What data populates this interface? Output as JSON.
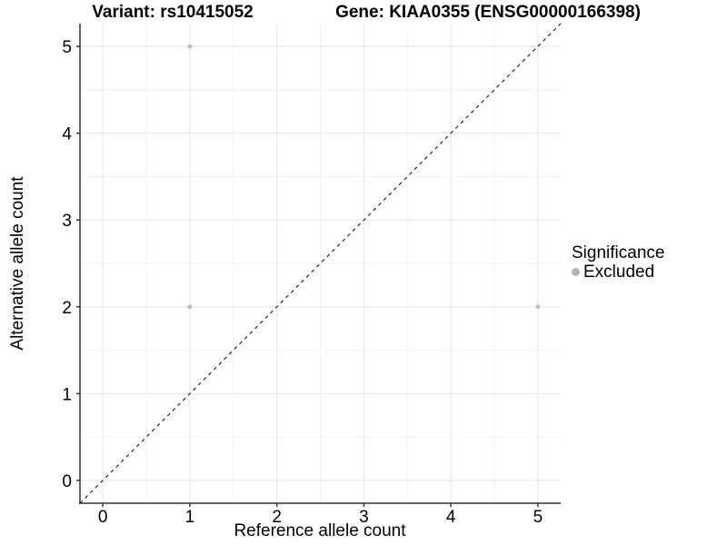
{
  "figure": {
    "title_left": "Variant: rs10415052",
    "title_right": "Gene: KIAA0355 (ENSG00000166398)"
  },
  "chart_data": {
    "type": "scatter",
    "title": "Variant: rs10415052    Gene: KIAA0355 (ENSG00000166398)",
    "xlabel": "Reference allele count",
    "ylabel": "Alternative allele count",
    "xlim": [
      -0.2625,
      5.2625
    ],
    "ylim": [
      -0.2625,
      5.2625
    ],
    "x_ticks": [
      0,
      1,
      2,
      3,
      4,
      5
    ],
    "y_ticks": [
      0,
      1,
      2,
      3,
      4,
      5
    ],
    "x_tick_labels": [
      "0",
      "1",
      "2",
      "3",
      "4",
      "5"
    ],
    "y_tick_labels": [
      "0",
      "1",
      "2",
      "3",
      "4",
      "5"
    ],
    "minor_ticks": [
      0.5,
      1.5,
      2.5,
      3.5,
      4.5
    ],
    "grid": "major+minor",
    "series": [
      {
        "name": "Excluded",
        "points": [
          [
            1,
            5
          ],
          [
            1,
            2
          ],
          [
            5,
            2
          ]
        ],
        "color": "#bebebe"
      }
    ],
    "reference_line": {
      "type": "identity",
      "from": [
        -0.2625,
        -0.2625
      ],
      "to": [
        5.2625,
        5.2625
      ],
      "style": "dashed",
      "color": "#000000"
    },
    "legend": {
      "title": "Significance",
      "position": "right",
      "entries": [
        {
          "label": "Excluded",
          "color": "#b5b5b5"
        }
      ]
    }
  },
  "colors": {
    "background": "#ffffff",
    "grid_major": "#e5e5e5",
    "grid_minor": "#f2f2f2",
    "axis_line": "#333333",
    "tick_mark": "#333333",
    "text": "#000000",
    "point": "#bebebe",
    "legend_key": "#b5b5b5"
  }
}
